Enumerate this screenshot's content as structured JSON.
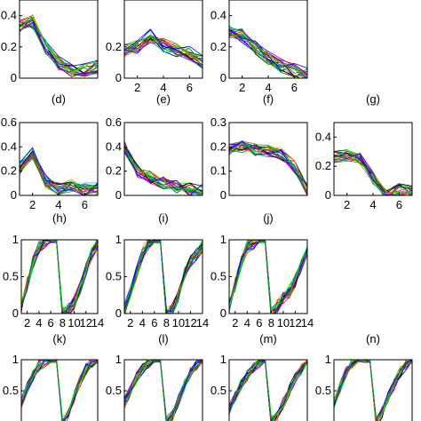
{
  "colors": {
    "palette": [
      "#0000ff",
      "#00a000",
      "#ff0000",
      "#00bfbf",
      "#bf00bf",
      "#7f7f00",
      "#000000",
      "#ff7f00",
      "#7f00ff",
      "#00ff00"
    ]
  },
  "chart_data": [
    {
      "type": "line",
      "caption": "",
      "x": [
        1,
        2,
        3,
        4,
        5,
        6,
        7
      ],
      "xlim": [
        1,
        7
      ],
      "ylim": [
        0,
        0.5
      ],
      "xticks": [],
      "yticks": [
        "0",
        "0.2",
        "0.4"
      ],
      "series": [
        {
          "values": [
            0.33,
            0.36,
            0.2,
            0.1,
            0.05,
            0.05,
            0.07
          ]
        }
      ]
    },
    {
      "type": "line",
      "caption": "",
      "x": [
        1,
        2,
        3,
        4,
        5,
        6,
        7
      ],
      "xlim": [
        1,
        7
      ],
      "ylim": [
        0,
        0.5
      ],
      "xticks": [
        "2",
        "4",
        "6"
      ],
      "yticks": [
        "0",
        "0.2"
      ],
      "series": [
        {
          "values": [
            0.18,
            0.2,
            0.27,
            0.21,
            0.18,
            0.16,
            0.1
          ]
        }
      ]
    },
    {
      "type": "line",
      "caption": "",
      "x": [
        1,
        2,
        3,
        4,
        5,
        6,
        7
      ],
      "xlim": [
        1,
        7
      ],
      "ylim": [
        0,
        0.5
      ],
      "xticks": [
        "2",
        "4",
        "6"
      ],
      "yticks": [
        "0",
        "0.2",
        "0.4"
      ],
      "series": [
        {
          "values": [
            0.3,
            0.27,
            0.2,
            0.13,
            0.08,
            0.05,
            0.02
          ]
        }
      ]
    },
    {
      "type": "line",
      "caption": "(d)",
      "x": [
        1,
        2,
        3,
        4,
        5,
        6,
        7
      ],
      "xlim": [
        1,
        7
      ],
      "ylim": [
        0,
        0.6
      ],
      "xticks": [
        "2",
        "4",
        "6"
      ],
      "yticks": [
        "0",
        "0.2",
        "0.4",
        "0.6"
      ],
      "series": [
        {
          "values": [
            0.22,
            0.35,
            0.12,
            0.05,
            0.08,
            0.05,
            0.05
          ]
        }
      ]
    },
    {
      "type": "line",
      "caption": "(e)",
      "x": [
        1,
        2,
        3,
        4,
        5,
        6,
        7
      ],
      "xlim": [
        1,
        7
      ],
      "ylim": [
        0,
        0.6
      ],
      "xticks": [],
      "yticks": [
        "0",
        "0.2",
        "0.4",
        "0.6"
      ],
      "series": [
        {
          "values": [
            0.4,
            0.2,
            0.15,
            0.1,
            0.07,
            0.05,
            0.04
          ]
        }
      ]
    },
    {
      "type": "line",
      "caption": "(f)",
      "x": [
        1,
        2,
        3,
        4,
        5,
        6,
        7
      ],
      "xlim": [
        1,
        7
      ],
      "ylim": [
        0,
        0.3
      ],
      "xticks": [],
      "yticks": [
        "0",
        "0.1",
        "0.2",
        "0.3"
      ],
      "series": [
        {
          "values": [
            0.19,
            0.2,
            0.19,
            0.18,
            0.17,
            0.12,
            0.02
          ]
        }
      ]
    },
    {
      "type": "line",
      "caption": "(g)",
      "x": [
        1,
        2,
        3,
        4,
        5,
        6,
        7
      ],
      "xlim": [
        1,
        7
      ],
      "ylim": [
        0,
        0.5
      ],
      "xticks": [
        "2",
        "4",
        "6"
      ],
      "yticks": [
        "0",
        "0.2",
        "0.4"
      ],
      "series": [
        {
          "values": [
            0.26,
            0.28,
            0.25,
            0.12,
            0.0,
            0.04,
            0.02
          ]
        }
      ]
    },
    {
      "type": "line",
      "caption": "(h)",
      "x": [
        1,
        2,
        3,
        4,
        5,
        6,
        7,
        8,
        9,
        10,
        11,
        12,
        13,
        14
      ],
      "xlim": [
        1,
        14
      ],
      "ylim": [
        0,
        1
      ],
      "xticks": [
        "2",
        "4",
        "6",
        "8",
        "10",
        "12",
        "14"
      ],
      "yticks": [
        "0",
        "0.5",
        "1"
      ],
      "series": [
        {
          "values": [
            0.1,
            0.4,
            0.7,
            0.9,
            0.97,
            1.0,
            1.0,
            0.0,
            0.05,
            0.15,
            0.35,
            0.6,
            0.8,
            0.95
          ]
        }
      ]
    },
    {
      "type": "line",
      "caption": "(i)",
      "x": [
        1,
        2,
        3,
        4,
        5,
        6,
        7,
        8,
        9,
        10,
        11,
        12,
        13,
        14
      ],
      "xlim": [
        1,
        14
      ],
      "ylim": [
        0,
        1
      ],
      "xticks": [
        "2",
        "4",
        "6",
        "8",
        "10",
        "12",
        "14"
      ],
      "yticks": [
        "0",
        "0.5",
        "1"
      ],
      "series": [
        {
          "values": [
            0.05,
            0.3,
            0.55,
            0.8,
            0.95,
            1.0,
            1.0,
            0.0,
            0.05,
            0.25,
            0.55,
            0.7,
            0.8,
            0.92
          ]
        }
      ]
    },
    {
      "type": "line",
      "caption": "(j)",
      "x": [
        1,
        2,
        3,
        4,
        5,
        6,
        7,
        8,
        9,
        10,
        11,
        12,
        13,
        14
      ],
      "xlim": [
        1,
        14
      ],
      "ylim": [
        0,
        1
      ],
      "xticks": [
        "2",
        "4",
        "6",
        "8",
        "10",
        "12",
        "14"
      ],
      "yticks": [
        "0",
        "0.5",
        "1"
      ],
      "series": [
        {
          "values": [
            0.1,
            0.4,
            0.7,
            0.9,
            0.95,
            1.0,
            1.0,
            0.0,
            0.1,
            0.2,
            0.3,
            0.45,
            0.65,
            0.85
          ]
        }
      ]
    },
    {
      "type": "line",
      "caption": "(k)",
      "x": [
        1,
        2,
        3,
        4,
        5,
        6,
        7,
        8,
        9,
        10,
        11,
        12,
        13,
        14
      ],
      "xlim": [
        1,
        14
      ],
      "ylim": [
        0,
        1
      ],
      "xticks": [],
      "yticks": [
        "0.5",
        "1"
      ],
      "series": [
        {
          "values": [
            0.3,
            0.55,
            0.75,
            0.9,
            0.97,
            1.0,
            1.0,
            0.0,
            0.15,
            0.4,
            0.65,
            0.85,
            0.95,
            1.0
          ]
        }
      ]
    },
    {
      "type": "line",
      "caption": "(l)",
      "x": [
        1,
        2,
        3,
        4,
        5,
        6,
        7,
        8,
        9,
        10,
        11,
        12,
        13,
        14
      ],
      "xlim": [
        1,
        14
      ],
      "ylim": [
        0,
        1
      ],
      "xticks": [],
      "yticks": [
        "0.5",
        "1"
      ],
      "series": [
        {
          "values": [
            0.3,
            0.5,
            0.7,
            0.85,
            0.95,
            1.0,
            1.0,
            0.0,
            0.1,
            0.35,
            0.6,
            0.8,
            0.92,
            1.0
          ]
        }
      ]
    },
    {
      "type": "line",
      "caption": "(m)",
      "x": [
        1,
        2,
        3,
        4,
        5,
        6,
        7,
        8,
        9,
        10,
        11,
        12,
        13,
        14
      ],
      "xlim": [
        1,
        14
      ],
      "ylim": [
        0,
        1
      ],
      "xticks": [],
      "yticks": [
        "0.5",
        "1"
      ],
      "series": [
        {
          "values": [
            0.2,
            0.4,
            0.6,
            0.75,
            0.88,
            0.96,
            1.0,
            0.0,
            0.1,
            0.3,
            0.5,
            0.7,
            0.85,
            1.0
          ]
        }
      ]
    },
    {
      "type": "line",
      "caption": "(n)",
      "x": [
        1,
        2,
        3,
        4,
        5,
        6,
        7,
        8,
        9,
        10,
        11,
        12,
        13,
        14
      ],
      "xlim": [
        1,
        14
      ],
      "ylim": [
        0,
        1
      ],
      "xticks": [],
      "yticks": [
        "0.5",
        "1"
      ],
      "series": [
        {
          "values": [
            0.3,
            0.55,
            0.8,
            0.95,
            1.0,
            1.0,
            1.0,
            0.0,
            0.15,
            0.4,
            0.6,
            0.8,
            0.92,
            1.0
          ]
        }
      ]
    }
  ]
}
